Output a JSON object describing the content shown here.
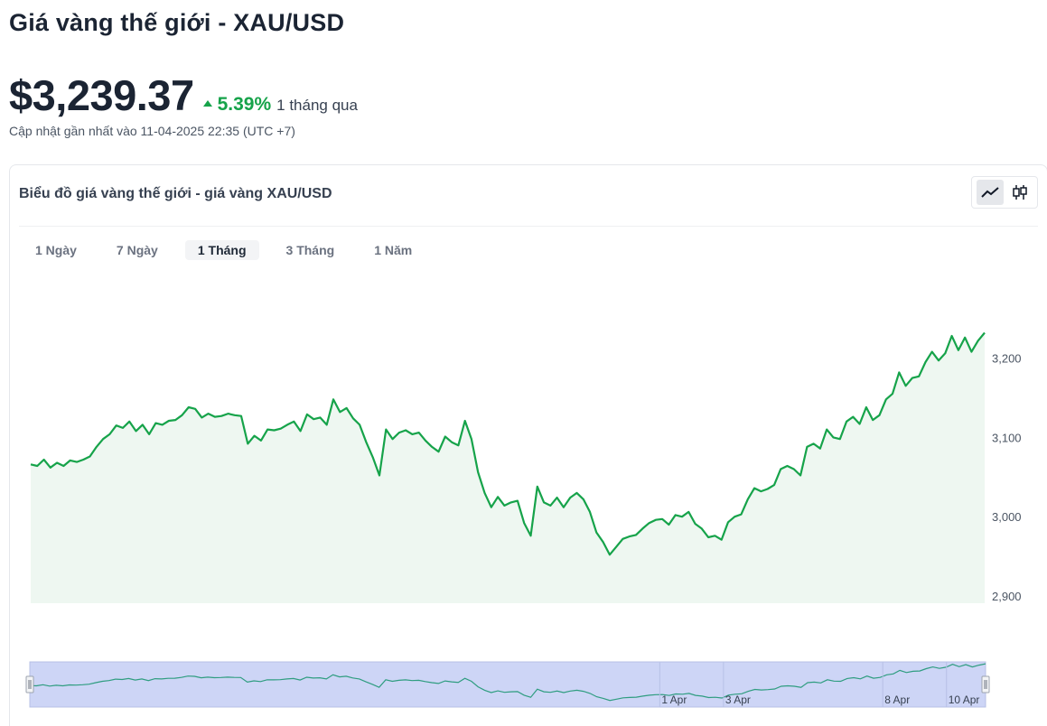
{
  "page": {
    "title": "Giá vàng thế giới - XAU/USD",
    "price": "$3,239.37",
    "change_pct": "5.39%",
    "change_period": "1 tháng qua",
    "updated": "Cập nhật gần nhất vào 11-04-2025 22:35 (UTC +7)"
  },
  "card": {
    "title": "Biểu đồ giá vàng thế giới - giá vàng XAU/USD",
    "chart_types": [
      {
        "icon": "line-chart-icon",
        "active": true
      },
      {
        "icon": "candlestick-icon",
        "active": false
      }
    ],
    "ranges": [
      {
        "label": "1 Ngày",
        "active": false
      },
      {
        "label": "7 Ngày",
        "active": false
      },
      {
        "label": "1 Tháng",
        "active": true
      },
      {
        "label": "3 Tháng",
        "active": false
      },
      {
        "label": "1 Năm",
        "active": false
      }
    ]
  },
  "colors": {
    "line": "#16a34a",
    "area": "#eef7f1",
    "navigator_fill": "#cdd5f6",
    "navigator_border": "#b7c0e6"
  },
  "chart_data": {
    "type": "area",
    "x_start": "2025-03-12",
    "x_end": "2025-04-11",
    "ylim": [
      2900,
      3240
    ],
    "yticks": [
      "3,200",
      "3,100",
      "3,000",
      "2,900"
    ],
    "ytick_values": [
      3200,
      3100,
      3000,
      2900
    ],
    "navigator_labels": [
      {
        "label": "1 Apr",
        "x": "2025-04-01"
      },
      {
        "label": "3 Apr",
        "x": "2025-04-03"
      },
      {
        "label": "8 Apr",
        "x": "2025-04-08"
      },
      {
        "label": "10 Apr",
        "x": "2025-04-10"
      }
    ],
    "series": [
      {
        "values": [
          3066,
          3064,
          3072,
          3062,
          3068,
          3064,
          3071,
          3069,
          3072,
          3076,
          3088,
          3098,
          3104,
          3115,
          3112,
          3120,
          3108,
          3116,
          3104,
          3118,
          3116,
          3121,
          3122,
          3128,
          3138,
          3136,
          3125,
          3130,
          3126,
          3127,
          3130,
          3128,
          3127,
          3092,
          3102,
          3096,
          3110,
          3109,
          3111,
          3116,
          3120,
          3108,
          3129,
          3123,
          3125,
          3116,
          3148,
          3132,
          3137,
          3124,
          3116,
          3094,
          3075,
          3052,
          3110,
          3098,
          3106,
          3109,
          3104,
          3106,
          3096,
          3088,
          3082,
          3101,
          3094,
          3090,
          3121,
          3098,
          3056,
          3030,
          3012,
          3025,
          3014,
          3018,
          3020,
          2992,
          2976,
          3038,
          3018,
          3014,
          3024,
          3012,
          3024,
          3030,
          3022,
          3006,
          2980,
          2968,
          2952,
          2962,
          2972,
          2975,
          2977,
          2985,
          2992,
          2996,
          2997,
          2990,
          3002,
          3000,
          3006,
          2991,
          2985,
          2974,
          2976,
          2971,
          2993,
          3000,
          3003,
          3022,
          3036,
          3032,
          3035,
          3040,
          3060,
          3064,
          3060,
          3052,
          3088,
          3092,
          3086,
          3110,
          3100,
          3098,
          3120,
          3126,
          3117,
          3138,
          3122,
          3128,
          3148,
          3155,
          3182,
          3165,
          3175,
          3177,
          3195,
          3208,
          3197,
          3206,
          3228,
          3210,
          3226,
          3208,
          3222,
          3232
        ]
      }
    ]
  }
}
